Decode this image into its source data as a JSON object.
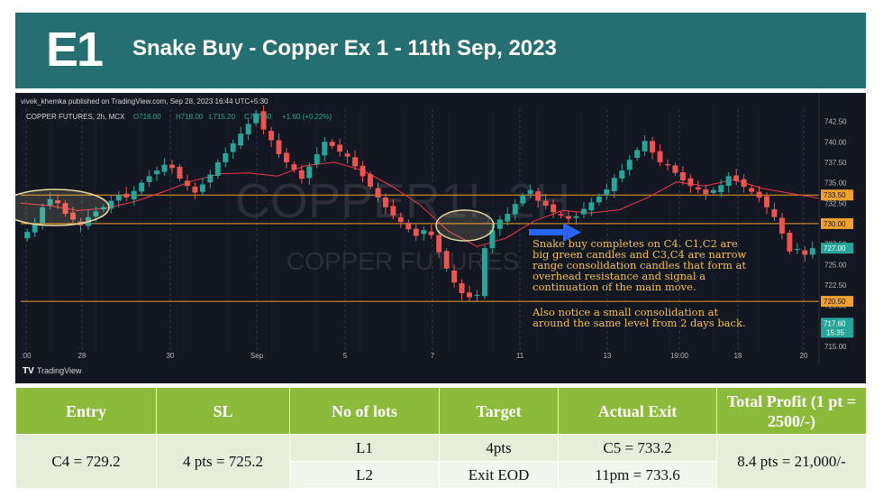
{
  "header": {
    "badge": "E1",
    "title": "Snake Buy - Copper Ex 1 - 11th Sep, 2023"
  },
  "chart": {
    "publisher": "vivek_khemka published on TradingView.com, Sep 28, 2023 16:44 UTC+5:30",
    "symbol": "COPPER FUTURES, 2h, MCX",
    "ohlc": {
      "o": "O716.00",
      "h": "H718.00",
      "l": "L715.20",
      "c": "C717.60",
      "chg": "+1.60 (+0.22%)"
    },
    "watermark_symbol": "COPPER1!, 2H",
    "watermark_name": "COPPER FUTURES",
    "brand": "TradingView",
    "annotation_main": [
      "Snake buy completes on C4. C1,C2 are",
      "big green candles and C3,C4 are narrow",
      "range consolidation candles that form at",
      "overhead resistance and signal a",
      "continuation of the main move."
    ],
    "annotation_sub": [
      "Also notice a small consolidation at",
      "around the same level from 2 days back."
    ],
    "colors": {
      "up": "#26a69a",
      "down": "#ef5350",
      "ma": "#f23645",
      "level": "#f0a030",
      "annotation": "#f0c050",
      "arrow": "#2962ff",
      "background": "#131722"
    }
  },
  "chart_data": {
    "type": "candlestick",
    "timeframe": "2h",
    "x_ticks": [
      ":00",
      "28",
      "30",
      "Sep",
      "5",
      "7",
      "11",
      "13",
      "19:00",
      "18",
      "20"
    ],
    "y_ticks": [
      "742.50",
      "740.00",
      "737.50",
      "735.00",
      "732.50",
      "730.00",
      "727.50",
      "725.00",
      "722.50",
      "720.00",
      "717.50",
      "715.00"
    ],
    "ylim": [
      714,
      744
    ],
    "levels": [
      {
        "label": "733.50",
        "value": 733.5
      },
      {
        "label": "730.00",
        "value": 730.0
      },
      {
        "label": "720.50",
        "value": 720.5
      }
    ],
    "last_price": {
      "value": "717.60",
      "time": "15:35",
      "number": 717.6
    },
    "current_price": {
      "label": "727.00",
      "value": 727.0
    },
    "close_path": [
      729,
      730,
      732,
      733,
      732.5,
      731.2,
      730.5,
      729.8,
      730.8,
      731.5,
      732,
      732.8,
      733.5,
      733.2,
      734,
      735,
      735.8,
      736.5,
      737.2,
      736.8,
      735.5,
      734.6,
      733.8,
      734.8,
      736,
      737.5,
      738.6,
      739.8,
      741,
      742.2,
      743.5,
      741.5,
      740.2,
      738.5,
      737.5,
      736.6,
      735.5,
      737,
      738.5,
      740,
      739.5,
      738.8,
      738.2,
      737,
      735.8,
      734.5,
      733.2,
      732,
      731,
      730.2,
      729.3,
      728.5,
      729.2,
      728.6,
      726.5,
      724.5,
      722.8,
      721.5,
      721,
      721.3,
      727,
      729.2,
      730.5,
      731.2,
      732.4,
      733.4,
      734.1,
      732.8,
      732.2,
      731.4,
      731,
      730.6,
      730.9,
      731.8,
      732.6,
      733.3,
      734.2,
      735.6,
      736.5,
      737.8,
      739,
      740.1,
      738.7,
      737.5,
      737.2,
      736.2,
      735.3,
      734.6,
      734.2,
      733.6,
      734.1,
      734.7,
      735.8,
      735.2,
      734.5,
      733.9,
      733.2,
      732,
      730.8,
      728.8,
      726.6,
      726.9,
      726.2,
      727
    ],
    "ma_path": [
      732.5,
      732.2,
      731.6,
      731.9,
      732.7,
      733.9,
      735.2,
      736.1,
      736.2,
      735.8,
      737.1,
      737.5,
      736.5,
      734.6,
      732.3,
      729.1,
      727.2,
      728.2,
      730.3,
      731.6,
      731.3,
      731.7,
      733.2,
      735.1,
      734.6,
      735.4,
      734.3,
      733.7,
      733.1
    ]
  },
  "table": {
    "headers": [
      "Entry",
      "SL",
      "No of lots",
      "Target",
      "Actual Exit",
      "Total Profit (1 pt = 2500/-)"
    ],
    "entry": "C4 = 729.2",
    "sl": "4 pts = 725.2",
    "rows": [
      {
        "lot": "L1",
        "target": "4pts",
        "exit": "C5 = 733.2"
      },
      {
        "lot": "L2",
        "target": "Exit EOD",
        "exit": "11pm = 733.6"
      }
    ],
    "profit": "8.4 pts  = 21,000/-"
  }
}
